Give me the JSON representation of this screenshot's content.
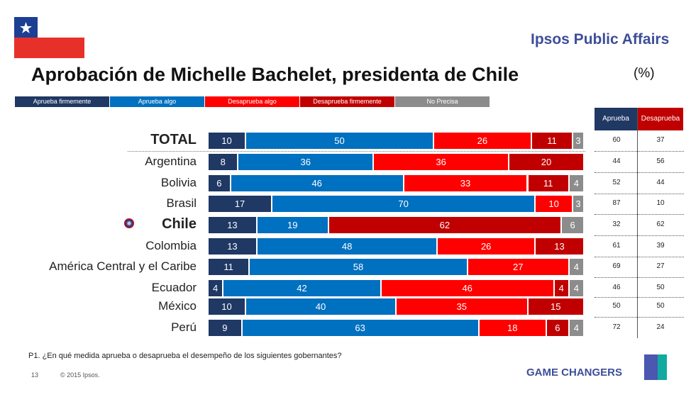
{
  "header": {
    "brand": "Ipsos Public Affairs",
    "title": "Aprobación de Michelle Bachelet, presidenta de Chile",
    "unit": "(%)"
  },
  "colors": {
    "aprueba_firmemente": "#1f3864",
    "aprueba_algo": "#0070c0",
    "desaprueba_algo": "#ff0000",
    "desaprueba_firmemente": "#c00000",
    "no_precisa": "#8c8c8c"
  },
  "chart_data": {
    "type": "bar",
    "orientation": "horizontal-stacked",
    "legend_position": "top",
    "categories": [
      "TOTAL",
      "Argentina",
      "Bolivia",
      "Brasil",
      "Chile",
      "Colombia",
      "América Central y el Caribe",
      "Ecuador",
      "México",
      "Perú"
    ],
    "series": [
      {
        "name": "Aprueba firmemente",
        "values": [
          10,
          8,
          6,
          17,
          13,
          13,
          11,
          4,
          10,
          9
        ]
      },
      {
        "name": "Aprueba algo",
        "values": [
          50,
          36,
          46,
          70,
          19,
          48,
          58,
          42,
          40,
          63
        ]
      },
      {
        "name": "Desaprueba algo",
        "values": [
          26,
          36,
          33,
          10,
          null,
          26,
          27,
          46,
          35,
          18
        ]
      },
      {
        "name": "Desaprueba firmemente",
        "values": [
          11,
          20,
          11,
          null,
          62,
          13,
          null,
          4,
          15,
          6
        ]
      },
      {
        "name": "No Precisa",
        "values": [
          3,
          null,
          4,
          3,
          6,
          null,
          4,
          4,
          null,
          4
        ]
      }
    ],
    "summary_table": {
      "headers": [
        "Aprueba",
        "Desaprueba"
      ],
      "aprueba": [
        60,
        44,
        52,
        87,
        32,
        61,
        69,
        46,
        50,
        72
      ],
      "desaprueba": [
        37,
        56,
        44,
        10,
        62,
        39,
        27,
        50,
        50,
        24
      ]
    }
  },
  "footer": {
    "question": "P1. ¿En qué medida aprueba o desaprueba el desempeño de los siguientes gobernantes?",
    "page": "13",
    "copyright": "© 2015 Ipsos.",
    "tagline": "GAME CHANGERS",
    "logo_text": "Ipsos"
  }
}
